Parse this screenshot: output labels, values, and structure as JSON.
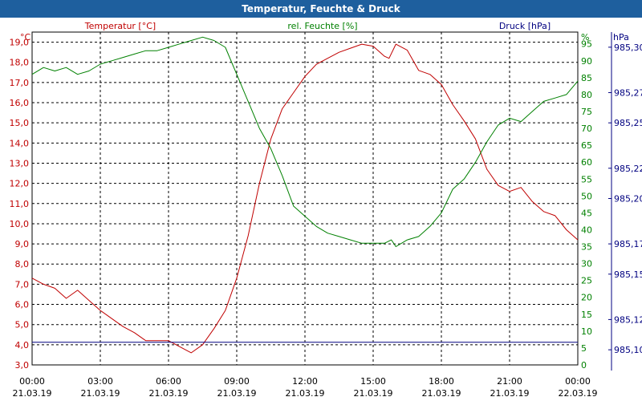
{
  "window": {
    "title": "Temperatur, Feuchte & Druck"
  },
  "colors": {
    "title_bg": "#1e5f9e",
    "temperature": "#c00000",
    "humidity": "#008000",
    "pressure": "#000080",
    "grid": "#000000",
    "text": "#000000"
  },
  "chart_data": {
    "type": "line",
    "title": "Temperatur, Feuchte & Druck",
    "grid": true,
    "x_ticks": [
      {
        "time": "00:00",
        "date": "21.03.19"
      },
      {
        "time": "03:00",
        "date": "21.03.19"
      },
      {
        "time": "06:00",
        "date": "21.03.19"
      },
      {
        "time": "09:00",
        "date": "21.03.19"
      },
      {
        "time": "12:00",
        "date": "21.03.19"
      },
      {
        "time": "15:00",
        "date": "21.03.19"
      },
      {
        "time": "18:00",
        "date": "21.03.19"
      },
      {
        "time": "21:00",
        "date": "21.03.19"
      },
      {
        "time": "00:00",
        "date": "22.03.19"
      }
    ],
    "x_range_hours": [
      0,
      24
    ],
    "axes": {
      "temperature": {
        "label": "Temperatur [°C]",
        "unit": "°C",
        "range": [
          3.0,
          19.5
        ],
        "ticks": [
          "3,0",
          "4,0",
          "5,0",
          "6,0",
          "7,0",
          "8,0",
          "9,0",
          "10,0",
          "11,0",
          "12,0",
          "13,0",
          "14,0",
          "15,0",
          "16,0",
          "17,0",
          "18,0",
          "19,0"
        ]
      },
      "humidity": {
        "label": "rel. Feuchte [%]",
        "unit": "%",
        "range": [
          0,
          98.5
        ],
        "ticks": [
          "0",
          "5",
          "10",
          "15",
          "20",
          "25",
          "30",
          "35",
          "40",
          "45",
          "50",
          "55",
          "60",
          "65",
          "70",
          "75",
          "80",
          "85",
          "90",
          "95"
        ]
      },
      "pressure": {
        "label": "Druck [hPa]",
        "unit": "hPa",
        "range": [
          985.09,
          985.31
        ],
        "ticks": [
          "985,10",
          "985,12",
          "985,15",
          "985,17",
          "985,20",
          "985,22",
          "985,25",
          "985,27",
          "985,30"
        ],
        "tick_values": [
          985.1,
          985.12,
          985.15,
          985.17,
          985.2,
          985.22,
          985.25,
          985.27,
          985.3
        ]
      }
    },
    "series": [
      {
        "name": "Temperatur [°C]",
        "axis": "temperature",
        "x": [
          0,
          0.5,
          1,
          1.5,
          2,
          2.5,
          3,
          3.5,
          4,
          4.5,
          5,
          5.5,
          6,
          6.5,
          7,
          7.5,
          8,
          8.5,
          9,
          9.5,
          10,
          10.5,
          11,
          11.5,
          12,
          12.5,
          13,
          13.5,
          14,
          14.5,
          15,
          15.5,
          15.7,
          16,
          16.5,
          17,
          17.5,
          18,
          18.5,
          19,
          19.5,
          20,
          20.5,
          21,
          21.5,
          22,
          22.5,
          23,
          23.5,
          24
        ],
        "values": [
          7.3,
          7.0,
          6.8,
          6.3,
          6.7,
          6.2,
          5.7,
          5.3,
          4.9,
          4.6,
          4.2,
          4.2,
          4.2,
          3.9,
          3.6,
          4.0,
          4.8,
          5.7,
          7.3,
          9.4,
          12.0,
          14.2,
          15.7,
          16.5,
          17.3,
          17.9,
          18.2,
          18.5,
          18.7,
          18.9,
          18.8,
          18.3,
          18.2,
          18.9,
          18.6,
          17.6,
          17.4,
          16.9,
          15.9,
          15.1,
          14.2,
          12.7,
          11.9,
          11.6,
          11.8,
          11.1,
          10.6,
          10.4,
          9.7,
          9.2
        ]
      },
      {
        "name": "rel. Feuchte [%]",
        "axis": "humidity",
        "x": [
          0,
          0.5,
          1,
          1.5,
          2,
          2.5,
          3,
          3.5,
          4,
          4.5,
          5,
          5.5,
          6,
          6.5,
          7,
          7.5,
          8,
          8.5,
          9,
          9.5,
          10,
          10.5,
          11,
          11.5,
          12,
          12.5,
          13,
          13.5,
          14,
          14.5,
          15,
          15.5,
          15.8,
          16,
          16.5,
          17,
          17.5,
          18,
          18.5,
          19,
          19.5,
          20,
          20.5,
          21,
          21.5,
          22,
          22.5,
          23,
          23.5,
          24
        ],
        "values": [
          86,
          88,
          87,
          88,
          86,
          87,
          89,
          90,
          91,
          92,
          93,
          93,
          94,
          95,
          96,
          97,
          96,
          94,
          86,
          78,
          70,
          64,
          56,
          47,
          44,
          41,
          39,
          38,
          37,
          36,
          36,
          36,
          37,
          35,
          37,
          38,
          41,
          45,
          52,
          55,
          60,
          66,
          71,
          73,
          72,
          75,
          78,
          79,
          80,
          84
        ]
      },
      {
        "name": "Druck [hPa]",
        "axis": "pressure",
        "x": [
          0,
          24
        ],
        "values": [
          985.105,
          985.105
        ]
      }
    ]
  }
}
